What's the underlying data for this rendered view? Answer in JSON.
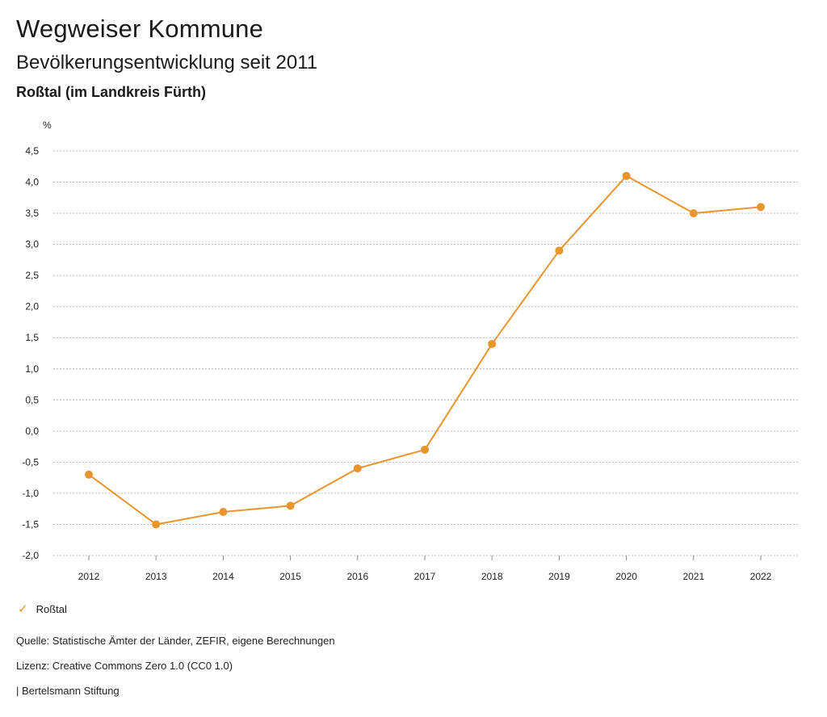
{
  "header": {
    "title": "Wegweiser Kommune",
    "subtitle": "Bevölkerungsentwicklung seit 2011",
    "region": "Roßtal (im Landkreis Fürth)"
  },
  "legend": {
    "label": "Roßtal",
    "icon": "check-icon"
  },
  "footer": {
    "source": "Quelle: Statistische Ämter der Länder, ZEFIR, eigene Berechnungen",
    "license": "Lizenz: Creative Commons Zero 1.0 (CC0 1.0)",
    "publisher": "| Bertelsmann Stiftung"
  },
  "colors": {
    "series": "#e8952e",
    "grid": "#bbbbbb"
  },
  "chart_data": {
    "type": "line",
    "title": "Bevölkerungsentwicklung seit 2011",
    "ylabel": "%",
    "xlabel": "",
    "ylim": [
      -2.0,
      4.5
    ],
    "yticks": [
      "-2,0",
      "-1,5",
      "-1,0",
      "-0,5",
      "0,0",
      "0,5",
      "1,0",
      "1,5",
      "2,0",
      "2,5",
      "3,0",
      "3,5",
      "4,0",
      "4,5"
    ],
    "ytick_values": [
      -2.0,
      -1.5,
      -1.0,
      -0.5,
      0.0,
      0.5,
      1.0,
      1.5,
      2.0,
      2.5,
      3.0,
      3.5,
      4.0,
      4.5
    ],
    "categories": [
      "2012",
      "2013",
      "2014",
      "2015",
      "2016",
      "2017",
      "2018",
      "2019",
      "2020",
      "2021",
      "2022"
    ],
    "series": [
      {
        "name": "Roßtal",
        "values": [
          -0.7,
          -1.5,
          -1.3,
          -1.2,
          -0.6,
          -0.3,
          1.4,
          2.9,
          4.1,
          3.5,
          3.6
        ]
      }
    ],
    "grid": true,
    "legend_position": "bottom-left"
  }
}
